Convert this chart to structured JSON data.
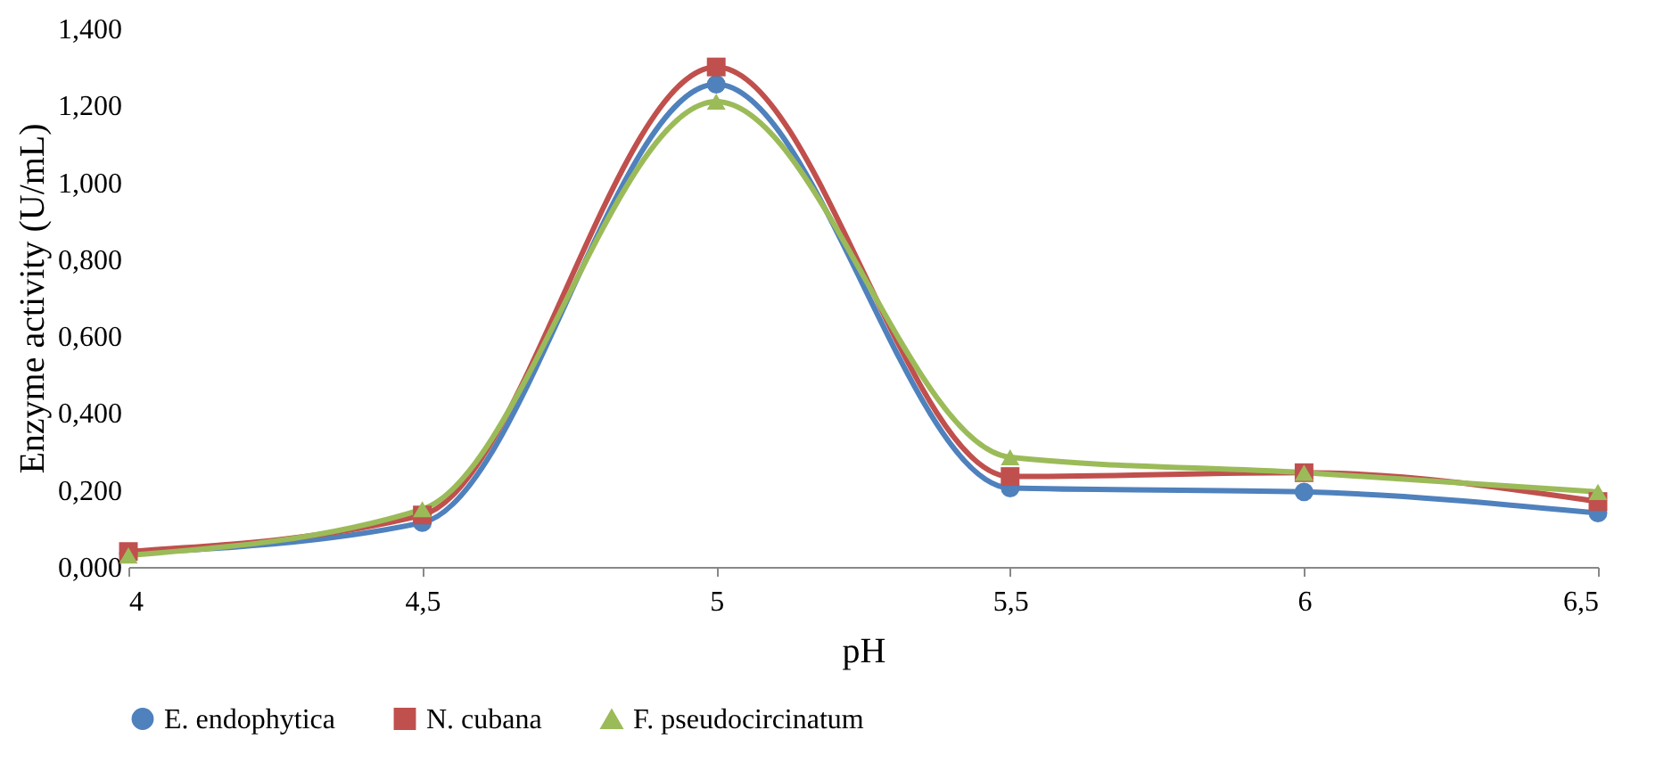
{
  "chart_data": {
    "type": "line",
    "xlabel": "pH",
    "ylabel": "Enzyme activity (U/mL)",
    "x": [
      4,
      4.5,
      5,
      5.5,
      6,
      6.5
    ],
    "series": [
      {
        "name": "E. endophytica",
        "color": "#4f81bd",
        "marker": "circle",
        "values": [
          0.035,
          0.115,
          1.255,
          0.205,
          0.195,
          0.14
        ]
      },
      {
        "name": "N. cubana",
        "color": "#c0504d",
        "marker": "square",
        "values": [
          0.04,
          0.135,
          1.3,
          0.235,
          0.245,
          0.17
        ]
      },
      {
        "name": "F. pseudocircinatum",
        "color": "#9bbb59",
        "marker": "triangle",
        "values": [
          0.03,
          0.15,
          1.21,
          0.285,
          0.245,
          0.195
        ]
      }
    ],
    "xlim": [
      4,
      6.5
    ],
    "xticks": [
      4,
      {
        "value": 4.5,
        "label": "4,5"
      },
      5,
      {
        "value": 5.5,
        "label": "5,5"
      },
      6,
      {
        "value": 6.5,
        "label": "6,5"
      }
    ],
    "ylim": [
      0,
      1.4
    ],
    "yticks": [
      {
        "value": 0,
        "label": "0,000"
      },
      {
        "value": 0.2,
        "label": "0,200"
      },
      {
        "value": 0.4,
        "label": "0,400"
      },
      {
        "value": 0.6,
        "label": "0,600"
      },
      {
        "value": 0.8,
        "label": "0,800"
      },
      {
        "value": 1,
        "label": "1,000"
      },
      {
        "value": 1.2,
        "label": "1,200"
      },
      {
        "value": 1.4,
        "label": "1,400"
      }
    ],
    "grid": false,
    "legend": "bottom",
    "line_style": "solid"
  }
}
